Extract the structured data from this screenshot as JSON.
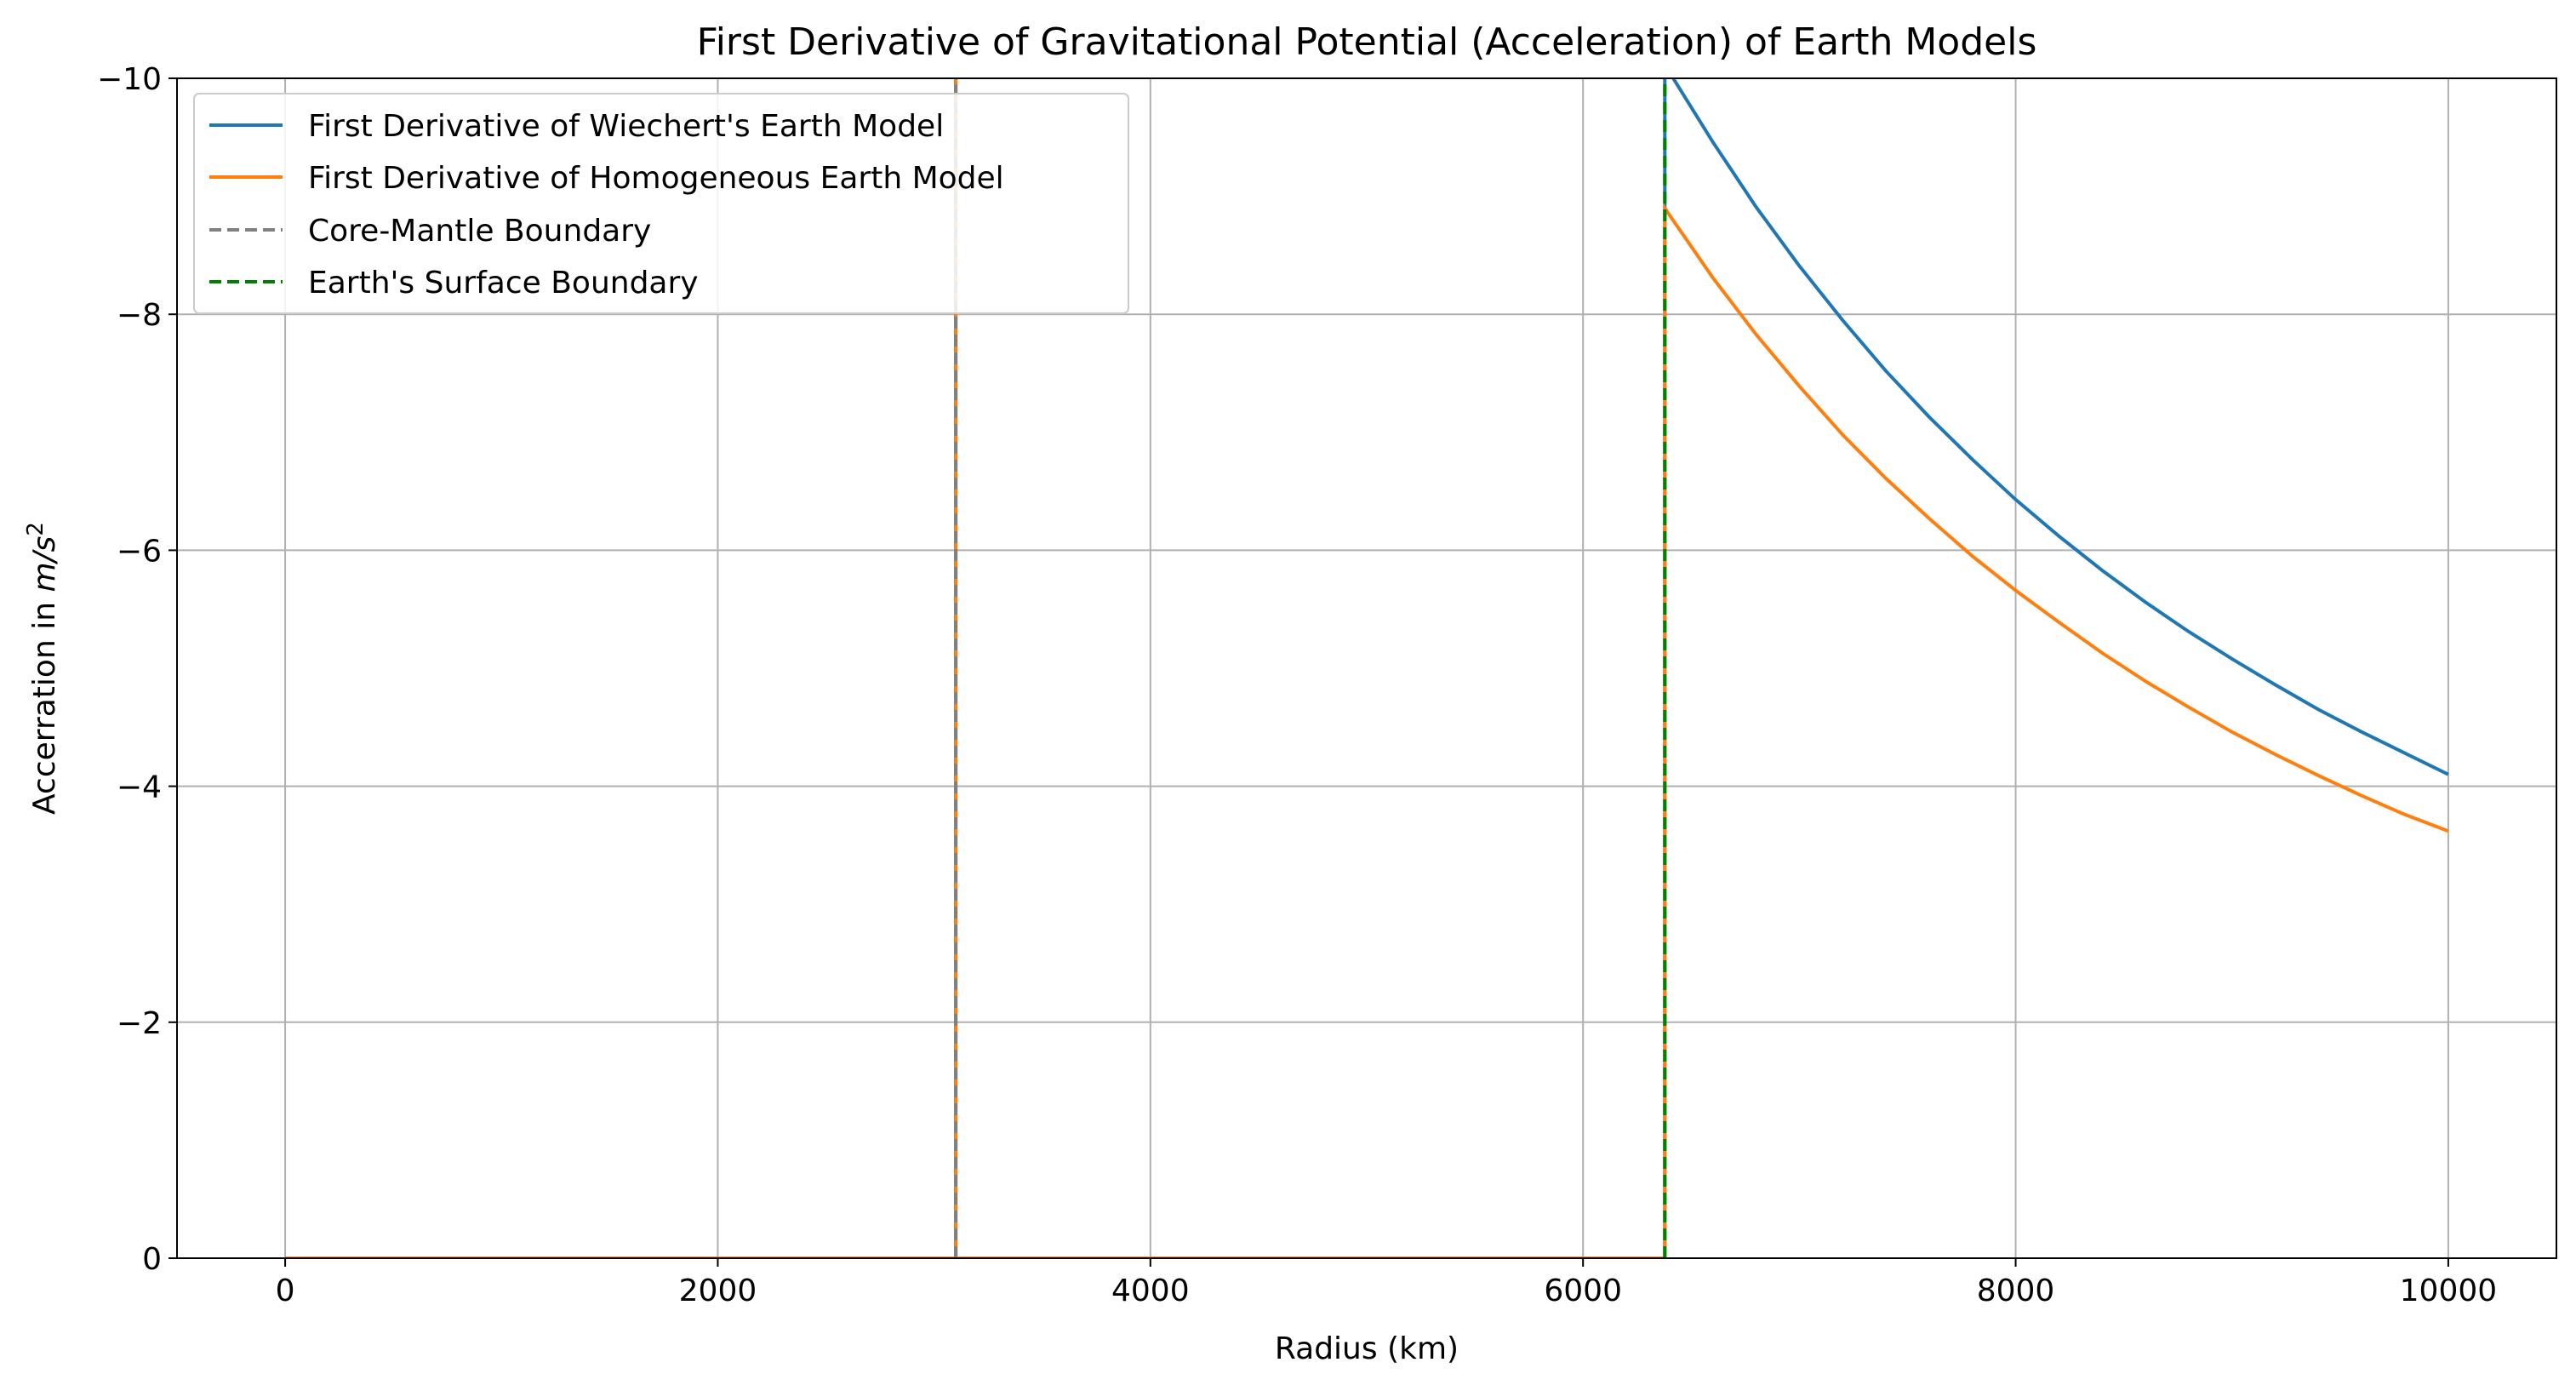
{
  "chart_data": {
    "type": "line",
    "title": "First Derivative of Gravitational Potential (Acceleration) of Earth Models",
    "xlabel": "Radius (km)",
    "ylabel_prefix": "Accerration in ",
    "ylabel_unit_base": "m/s",
    "ylabel_unit_exp": "2",
    "xlim": [
      -500,
      10500
    ],
    "ylim": [
      0,
      -10
    ],
    "x_ticks": [
      0,
      2000,
      4000,
      6000,
      8000,
      10000
    ],
    "x_tick_labels": [
      "0",
      "2000",
      "4000",
      "6000",
      "8000",
      "10000"
    ],
    "y_ticks": [
      0,
      -2,
      -4,
      -6,
      -8,
      -10
    ],
    "y_tick_labels": [
      "0",
      "−2",
      "−4",
      "−6",
      "−8",
      "−10"
    ],
    "grid": true,
    "legend_position": "top-left",
    "series": [
      {
        "name": "First Derivative of Wiechert's Earth Model",
        "color": "#1f77b4",
        "style": "solid",
        "x": [
          0,
          3100,
          3100,
          3100,
          6378,
          6378,
          6400,
          6600,
          6800,
          7000,
          7200,
          7400,
          7600,
          7800,
          8000,
          8200,
          8400,
          8600,
          8800,
          9000,
          9200,
          9400,
          9600,
          9800,
          10000
        ],
        "y": [
          0,
          0,
          -10.5,
          0,
          0,
          -10.5,
          -10.05,
          -9.46,
          -8.91,
          -8.41,
          -7.95,
          -7.52,
          -7.13,
          -6.77,
          -6.43,
          -6.12,
          -5.83,
          -5.56,
          -5.31,
          -5.08,
          -4.86,
          -4.65,
          -4.46,
          -4.28,
          -4.1
        ]
      },
      {
        "name": "First Derivative of Homogeneous Earth Model",
        "color": "#ff7f0e",
        "style": "solid",
        "x": [
          0,
          3100,
          3100,
          3100,
          6378,
          6378,
          6400,
          6600,
          6800,
          7000,
          7200,
          7400,
          7600,
          7800,
          8000,
          8200,
          8400,
          8600,
          8800,
          9000,
          9200,
          9400,
          9600,
          9800,
          10000
        ],
        "y": [
          0,
          0,
          -10.5,
          0,
          0,
          -8.9,
          -8.84,
          -8.31,
          -7.83,
          -7.39,
          -6.98,
          -6.61,
          -6.27,
          -5.95,
          -5.66,
          -5.39,
          -5.13,
          -4.89,
          -4.67,
          -4.46,
          -4.27,
          -4.09,
          -3.92,
          -3.76,
          -3.62
        ]
      },
      {
        "name": "Core-Mantle Boundary",
        "color": "#808080",
        "style": "dashed",
        "x": [
          3100,
          3100
        ],
        "y": [
          0,
          -10.5
        ]
      },
      {
        "name": "Earth's Surface Boundary",
        "color": "#008000",
        "style": "dashed",
        "x": [
          6378,
          6378
        ],
        "y": [
          0,
          -10.5
        ]
      }
    ]
  }
}
